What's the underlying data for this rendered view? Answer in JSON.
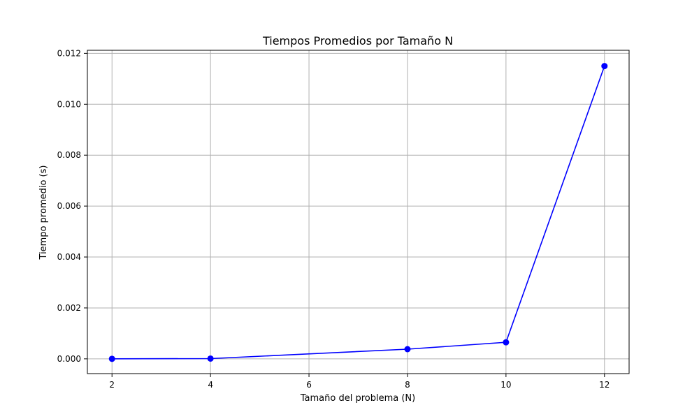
{
  "chart_data": {
    "type": "line",
    "title": "Tiempos Promedios por Tamaño N",
    "xlabel": "Tamaño del problema (N)",
    "ylabel": "Tiempo promedio (s)",
    "xlim": [
      1.5,
      12.5
    ],
    "ylim": [
      -0.00058,
      0.01212
    ],
    "grid": true,
    "x_ticks": [
      2,
      4,
      6,
      8,
      10,
      12
    ],
    "x_tick_labels": [
      "2",
      "4",
      "6",
      "8",
      "10",
      "12"
    ],
    "y_ticks": [
      0.0,
      0.002,
      0.004,
      0.006,
      0.008,
      0.01,
      0.012
    ],
    "y_tick_labels": [
      "0.000",
      "0.002",
      "0.004",
      "0.006",
      "0.008",
      "0.010",
      "0.012"
    ],
    "series": [
      {
        "x": [
          2,
          4,
          8,
          10,
          12
        ],
        "y": [
          0.0,
          1e-05,
          0.00038,
          0.00065,
          0.0115
        ],
        "color": "#0000ff",
        "marker": "circle"
      }
    ]
  }
}
